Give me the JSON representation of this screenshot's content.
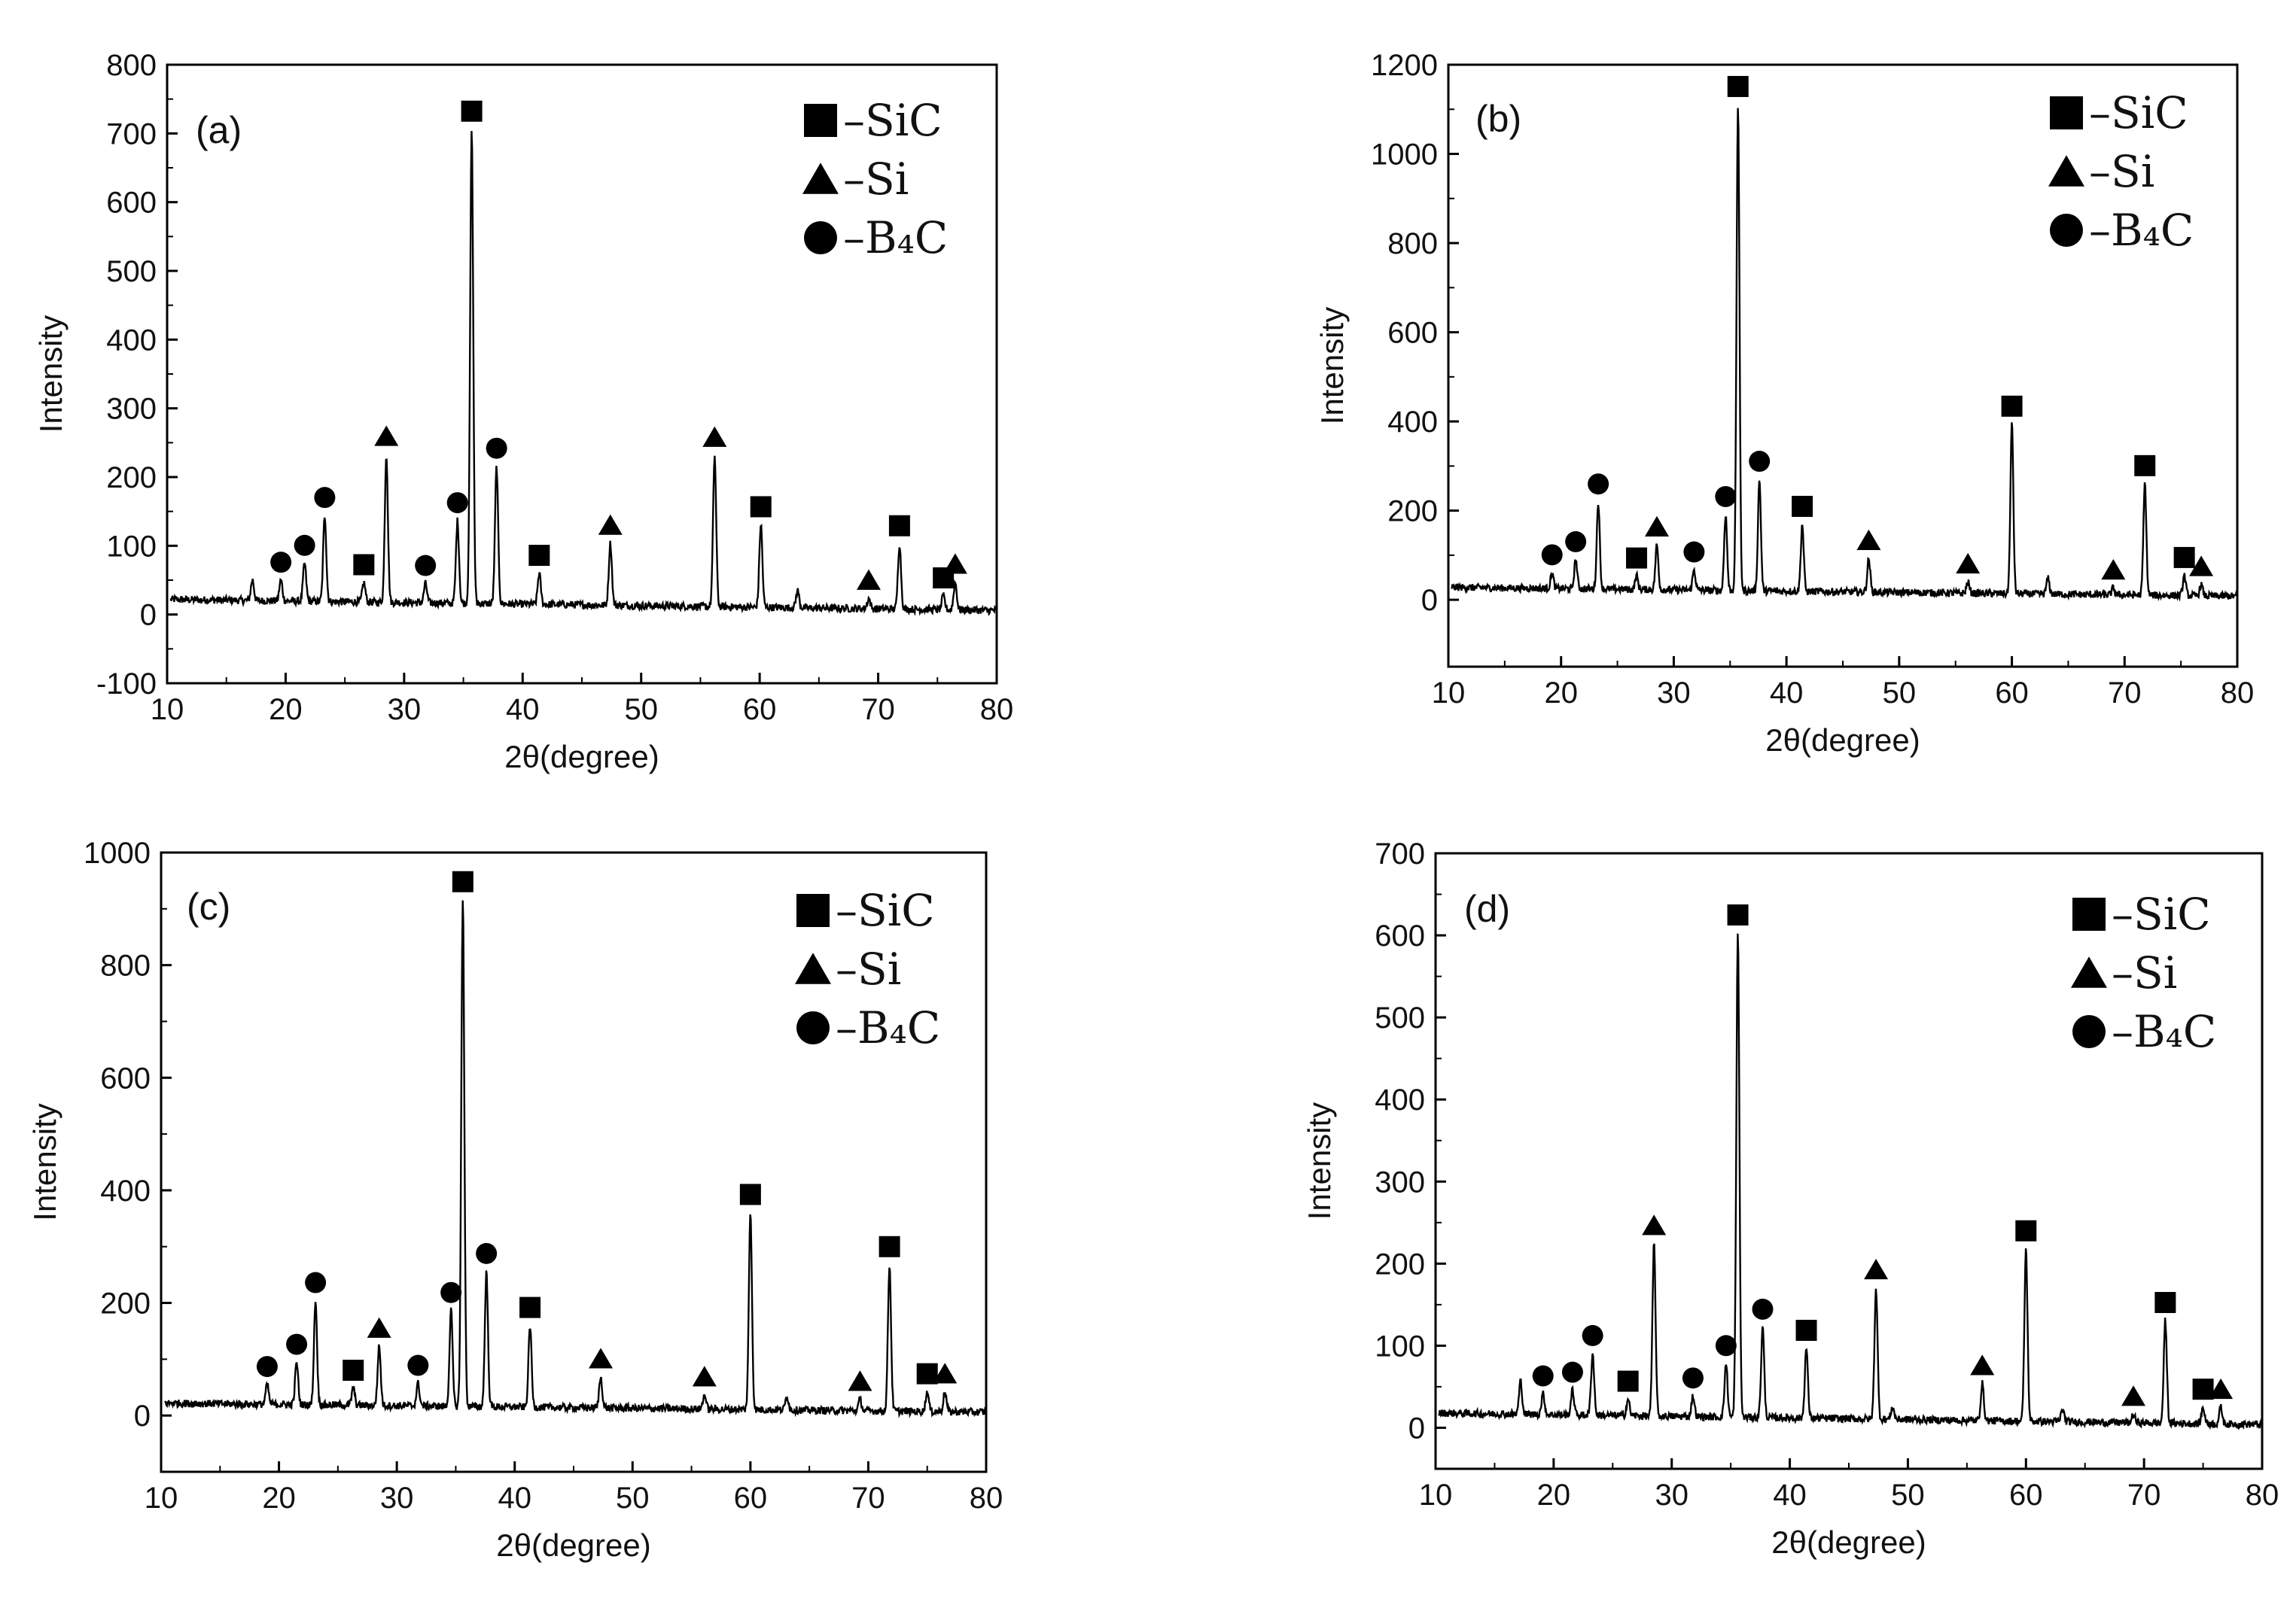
{
  "figure": {
    "xlabel": "2θ(degree)",
    "ylabel": "Intensity",
    "legend": [
      {
        "marker": "square",
        "label": "–SiC"
      },
      {
        "marker": "triangle",
        "label": "–Si"
      },
      {
        "marker": "circle",
        "label": "–B₄C"
      }
    ]
  },
  "chart_data": [
    {
      "type": "line",
      "panel_label": "(a)",
      "title": "",
      "xlabel": "2θ(degree)",
      "ylabel": "Intensity",
      "xlim": [
        10,
        80
      ],
      "ylim": [
        -100,
        800
      ],
      "xticks": [
        10,
        20,
        30,
        40,
        50,
        60,
        70,
        80
      ],
      "yticks": [
        -100,
        0,
        100,
        200,
        300,
        400,
        500,
        600,
        700,
        800
      ],
      "baseline": {
        "start": 22,
        "end": 6
      },
      "legend": [
        "–SiC",
        "–Si",
        "–B₄C"
      ],
      "legend_position": "top-right",
      "peaks": [
        {
          "x": 17.2,
          "y": 30
        },
        {
          "x": 19.6,
          "y": 30,
          "phase": "B4C"
        },
        {
          "x": 21.6,
          "y": 55,
          "phase": "B4C"
        },
        {
          "x": 23.3,
          "y": 125,
          "phase": "B4C"
        },
        {
          "x": 26.6,
          "y": 28,
          "phase": "SiC"
        },
        {
          "x": 28.5,
          "y": 215,
          "phase": "Si"
        },
        {
          "x": 31.8,
          "y": 28,
          "phase": "B4C"
        },
        {
          "x": 34.5,
          "y": 120,
          "phase": "B4C"
        },
        {
          "x": 35.7,
          "y": 690,
          "phase": "SiC"
        },
        {
          "x": 37.8,
          "y": 200,
          "phase": "B4C"
        },
        {
          "x": 41.4,
          "y": 45,
          "phase": "SiC"
        },
        {
          "x": 47.4,
          "y": 90,
          "phase": "Si"
        },
        {
          "x": 56.2,
          "y": 220,
          "phase": "Si"
        },
        {
          "x": 60.1,
          "y": 120,
          "phase": "SiC"
        },
        {
          "x": 63.2,
          "y": 25
        },
        {
          "x": 69.2,
          "y": 15,
          "phase": "Si"
        },
        {
          "x": 71.8,
          "y": 95,
          "phase": "SiC"
        },
        {
          "x": 75.5,
          "y": 20,
          "phase": "SiC"
        },
        {
          "x": 76.5,
          "y": 40,
          "phase": "Si"
        }
      ]
    },
    {
      "type": "line",
      "panel_label": "(b)",
      "title": "",
      "xlabel": "2θ(degree)",
      "ylabel": "Intensity",
      "xlim": [
        10,
        80
      ],
      "ylim": [
        -150,
        1200
      ],
      "xticks": [
        10,
        20,
        30,
        40,
        50,
        60,
        70,
        80
      ],
      "yticks": [
        0,
        200,
        400,
        600,
        800,
        1000,
        1200
      ],
      "baseline": {
        "start": 28,
        "end": 8
      },
      "legend": [
        "–SiC",
        "–Si",
        "–B₄C"
      ],
      "legend_position": "top-right",
      "peaks": [
        {
          "x": 19.2,
          "y": 35,
          "phase": "B4C"
        },
        {
          "x": 21.3,
          "y": 65,
          "phase": "B4C"
        },
        {
          "x": 23.3,
          "y": 195,
          "phase": "B4C"
        },
        {
          "x": 26.7,
          "y": 30,
          "phase": "SiC"
        },
        {
          "x": 28.5,
          "y": 100,
          "phase": "Si"
        },
        {
          "x": 31.8,
          "y": 45,
          "phase": "B4C"
        },
        {
          "x": 34.6,
          "y": 170,
          "phase": "B4C"
        },
        {
          "x": 35.7,
          "y": 1090,
          "phase": "SiC"
        },
        {
          "x": 37.6,
          "y": 250,
          "phase": "B4C"
        },
        {
          "x": 41.4,
          "y": 150,
          "phase": "SiC"
        },
        {
          "x": 47.3,
          "y": 75,
          "phase": "Si"
        },
        {
          "x": 56.1,
          "y": 25,
          "phase": "Si"
        },
        {
          "x": 60.0,
          "y": 380,
          "phase": "SiC"
        },
        {
          "x": 63.2,
          "y": 35
        },
        {
          "x": 69.0,
          "y": 15,
          "phase": "Si"
        },
        {
          "x": 71.8,
          "y": 250,
          "phase": "SiC"
        },
        {
          "x": 75.3,
          "y": 45,
          "phase": "SiC"
        },
        {
          "x": 76.8,
          "y": 25,
          "phase": "Si"
        }
      ]
    },
    {
      "type": "line",
      "panel_label": "(c)",
      "title": "",
      "xlabel": "2θ(degree)",
      "ylabel": "Intensity",
      "xlim": [
        10,
        80
      ],
      "ylim": [
        -100,
        1000
      ],
      "xticks": [
        10,
        20,
        30,
        40,
        50,
        60,
        70,
        80
      ],
      "yticks": [
        0,
        200,
        400,
        600,
        800,
        1000
      ],
      "baseline": {
        "start": 22,
        "end": 6
      },
      "legend": [
        "–SiC",
        "–Si",
        "–B₄C"
      ],
      "legend_position": "top-right",
      "peaks": [
        {
          "x": 19.0,
          "y": 35,
          "phase": "B4C"
        },
        {
          "x": 21.5,
          "y": 75,
          "phase": "B4C"
        },
        {
          "x": 23.1,
          "y": 185,
          "phase": "B4C"
        },
        {
          "x": 26.3,
          "y": 30,
          "phase": "SiC"
        },
        {
          "x": 28.5,
          "y": 105,
          "phase": "Si"
        },
        {
          "x": 31.8,
          "y": 40,
          "phase": "B4C"
        },
        {
          "x": 34.6,
          "y": 170,
          "phase": "B4C"
        },
        {
          "x": 35.6,
          "y": 900,
          "phase": "SiC"
        },
        {
          "x": 37.6,
          "y": 240,
          "phase": "B4C"
        },
        {
          "x": 41.3,
          "y": 145,
          "phase": "SiC"
        },
        {
          "x": 47.3,
          "y": 55,
          "phase": "Si"
        },
        {
          "x": 56.1,
          "y": 25,
          "phase": "Si"
        },
        {
          "x": 60.0,
          "y": 350,
          "phase": "SiC"
        },
        {
          "x": 63.1,
          "y": 25
        },
        {
          "x": 69.3,
          "y": 20,
          "phase": "Si"
        },
        {
          "x": 71.8,
          "y": 260,
          "phase": "SiC"
        },
        {
          "x": 75.0,
          "y": 35,
          "phase": "SiC"
        },
        {
          "x": 76.5,
          "y": 35,
          "phase": "Si"
        }
      ]
    },
    {
      "type": "line",
      "panel_label": "(d)",
      "title": "",
      "xlabel": "2θ(degree)",
      "ylabel": "Intensity",
      "xlim": [
        10,
        80
      ],
      "ylim": [
        -50,
        700
      ],
      "xticks": [
        10,
        20,
        30,
        40,
        50,
        60,
        70,
        80
      ],
      "yticks": [
        0,
        100,
        200,
        300,
        400,
        500,
        600,
        700
      ],
      "baseline": {
        "start": 18,
        "end": 4
      },
      "legend": [
        "–SiC",
        "–Si",
        "–B₄C"
      ],
      "legend_position": "top-right",
      "peaks": [
        {
          "x": 17.2,
          "y": 40
        },
        {
          "x": 19.1,
          "y": 25,
          "phase": "B4C"
        },
        {
          "x": 21.6,
          "y": 30,
          "phase": "B4C"
        },
        {
          "x": 23.3,
          "y": 75,
          "phase": "B4C"
        },
        {
          "x": 26.3,
          "y": 20,
          "phase": "SiC"
        },
        {
          "x": 28.5,
          "y": 210,
          "phase": "Si"
        },
        {
          "x": 31.8,
          "y": 25,
          "phase": "B4C"
        },
        {
          "x": 34.6,
          "y": 65,
          "phase": "B4C"
        },
        {
          "x": 35.6,
          "y": 590,
          "phase": "SiC"
        },
        {
          "x": 37.7,
          "y": 110,
          "phase": "B4C"
        },
        {
          "x": 41.4,
          "y": 85,
          "phase": "SiC"
        },
        {
          "x": 47.3,
          "y": 160,
          "phase": "Si"
        },
        {
          "x": 48.7,
          "y": 15
        },
        {
          "x": 56.3,
          "y": 45,
          "phase": "Si"
        },
        {
          "x": 60.0,
          "y": 210,
          "phase": "SiC"
        },
        {
          "x": 63.1,
          "y": 15
        },
        {
          "x": 69.1,
          "y": 10,
          "phase": "Si"
        },
        {
          "x": 71.8,
          "y": 125,
          "phase": "SiC"
        },
        {
          "x": 75.0,
          "y": 20,
          "phase": "SiC"
        },
        {
          "x": 76.5,
          "y": 20,
          "phase": "Si"
        }
      ]
    }
  ]
}
